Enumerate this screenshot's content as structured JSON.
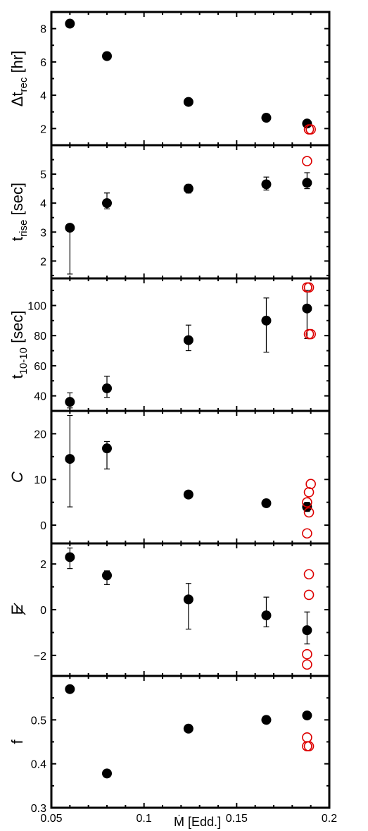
{
  "colors": {
    "filled": "#000000",
    "open": "#dd0000",
    "axis": "#000000",
    "background": "#ffffff"
  },
  "chart_data": {
    "type": "scatter",
    "layout": "stacked-panels",
    "shared_x": {
      "label": "Ṁ [Edd.]",
      "range": [
        0.05,
        0.2
      ],
      "ticks": [
        0.05,
        0.1,
        0.15,
        0.2
      ],
      "tick_labels": [
        "0.05",
        "0.1",
        "0.15",
        "0.2"
      ]
    },
    "panels": [
      {
        "id": "dtrec",
        "ylabel": {
          "base": "Δt",
          "sub": "rec",
          "suffix": " [hr]"
        },
        "ylim": [
          1,
          9
        ],
        "yticks": [
          2,
          4,
          6,
          8
        ],
        "ytick_labels": [
          "2",
          "4",
          "6",
          "8"
        ],
        "filled": [
          {
            "x": 0.06,
            "y": 8.3
          },
          {
            "x": 0.08,
            "y": 6.35,
            "err": [
              0.15,
              0.15
            ]
          },
          {
            "x": 0.124,
            "y": 3.6
          },
          {
            "x": 0.166,
            "y": 2.65
          },
          {
            "x": 0.188,
            "y": 2.3
          }
        ],
        "open": [
          {
            "x": 0.189,
            "y": 1.95
          },
          {
            "x": 0.19,
            "y": 1.95
          }
        ]
      },
      {
        "id": "trise",
        "ylabel": {
          "base": "t",
          "sub": "rise",
          "suffix": " [sec]"
        },
        "ylim": [
          1.4,
          6
        ],
        "yticks": [
          2,
          3,
          4,
          5
        ],
        "ytick_labels": [
          "2",
          "3",
          "4",
          "5"
        ],
        "filled": [
          {
            "x": 0.06,
            "y": 3.15,
            "err": [
              1.6,
              0
            ]
          },
          {
            "x": 0.08,
            "y": 4.0,
            "err": [
              0.2,
              0.35
            ]
          },
          {
            "x": 0.124,
            "y": 4.5,
            "err": [
              0.15,
              0.15
            ]
          },
          {
            "x": 0.166,
            "y": 4.65,
            "err": [
              0.2,
              0.25
            ]
          },
          {
            "x": 0.188,
            "y": 4.7,
            "err": [
              0.2,
              0.35
            ]
          }
        ],
        "open": [
          {
            "x": 0.188,
            "y": 5.45
          }
        ]
      },
      {
        "id": "t1010",
        "ylabel": {
          "base": "t",
          "sub": "10-10",
          "suffix": " [sec]"
        },
        "ylim": [
          30,
          118
        ],
        "yticks": [
          40,
          60,
          80,
          100
        ],
        "ytick_labels": [
          "40",
          "60",
          "80",
          "100"
        ],
        "filled": [
          {
            "x": 0.06,
            "y": 36,
            "err": [
              4,
              6
            ]
          },
          {
            "x": 0.08,
            "y": 45,
            "err": [
              6,
              8
            ]
          },
          {
            "x": 0.124,
            "y": 77,
            "err": [
              7,
              10
            ]
          },
          {
            "x": 0.166,
            "y": 90,
            "err": [
              21,
              15
            ]
          },
          {
            "x": 0.188,
            "y": 98,
            "err": [
              20,
              12
            ]
          }
        ],
        "open": [
          {
            "x": 0.188,
            "y": 112
          },
          {
            "x": 0.189,
            "y": 112
          },
          {
            "x": 0.189,
            "y": 81
          },
          {
            "x": 0.19,
            "y": 81
          }
        ]
      },
      {
        "id": "C",
        "ylabel": {
          "base": "C",
          "sub": "",
          "suffix": "",
          "italic": true
        },
        "ylim": [
          -4,
          25
        ],
        "yticks": [
          0,
          10,
          20
        ],
        "ytick_labels": [
          "0",
          "10",
          "20"
        ],
        "filled": [
          {
            "x": 0.06,
            "y": 14.5,
            "err": [
              10.5,
              9.5
            ]
          },
          {
            "x": 0.08,
            "y": 16.8,
            "err": [
              4.5,
              1.5
            ]
          },
          {
            "x": 0.124,
            "y": 6.7
          },
          {
            "x": 0.166,
            "y": 4.8
          },
          {
            "x": 0.188,
            "y": 4.0,
            "err": [
              1.0,
              1.0
            ]
          }
        ],
        "open": [
          {
            "x": 0.19,
            "y": 9.0
          },
          {
            "x": 0.189,
            "y": 7.2
          },
          {
            "x": 0.188,
            "y": 5.0
          },
          {
            "x": 0.189,
            "y": 2.8
          },
          {
            "x": 0.188,
            "y": -1.8
          }
        ]
      },
      {
        "id": "slash",
        "ylabel": {
          "base": "E",
          "sub": "",
          "suffix": "",
          "strike": true
        },
        "ylim": [
          -2.9,
          2.9
        ],
        "yticks": [
          -2,
          0,
          2
        ],
        "ytick_labels": [
          "−2",
          "0",
          "2"
        ],
        "filled": [
          {
            "x": 0.06,
            "y": 2.3,
            "err": [
              0.5,
              0.4
            ]
          },
          {
            "x": 0.08,
            "y": 1.5,
            "err": [
              0.4,
              0.2
            ]
          },
          {
            "x": 0.124,
            "y": 0.45,
            "err": [
              1.3,
              0.7
            ]
          },
          {
            "x": 0.166,
            "y": -0.25,
            "err": [
              0.5,
              0.8
            ]
          },
          {
            "x": 0.188,
            "y": -0.9,
            "err": [
              0.6,
              0.8
            ]
          }
        ],
        "open": [
          {
            "x": 0.189,
            "y": 1.55
          },
          {
            "x": 0.189,
            "y": 0.65
          },
          {
            "x": 0.188,
            "y": -1.95
          },
          {
            "x": 0.188,
            "y": -2.4
          }
        ]
      },
      {
        "id": "f",
        "ylabel": {
          "base": "f",
          "sub": "",
          "suffix": ""
        },
        "ylim": [
          0.3,
          0.6
        ],
        "yticks": [
          0.3,
          0.4,
          0.5
        ],
        "ytick_labels": [
          "0.3",
          "0.4",
          "0.5"
        ],
        "filled": [
          {
            "x": 0.06,
            "y": 0.57
          },
          {
            "x": 0.08,
            "y": 0.378
          },
          {
            "x": 0.124,
            "y": 0.48
          },
          {
            "x": 0.166,
            "y": 0.5
          },
          {
            "x": 0.188,
            "y": 0.51
          }
        ],
        "open": [
          {
            "x": 0.188,
            "y": 0.46
          },
          {
            "x": 0.188,
            "y": 0.44
          },
          {
            "x": 0.189,
            "y": 0.44
          }
        ]
      }
    ]
  }
}
